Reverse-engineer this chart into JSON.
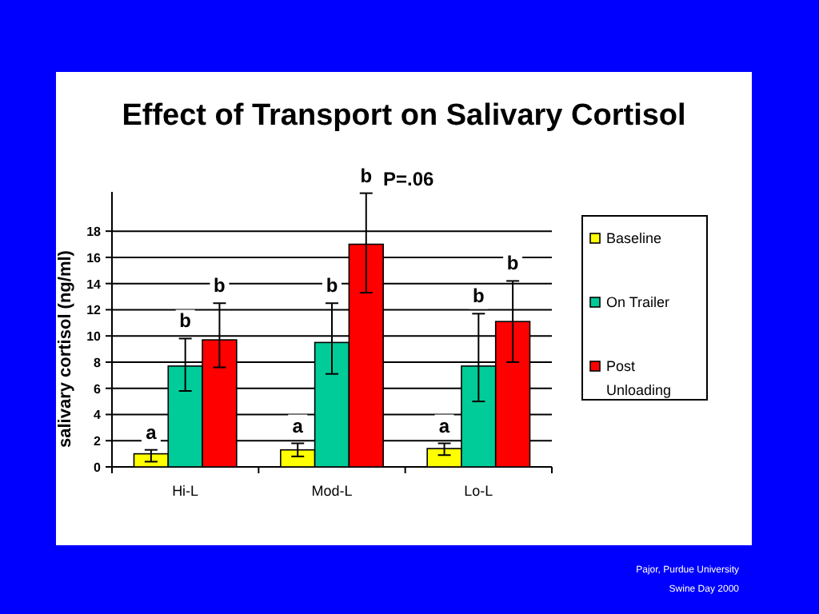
{
  "chart_data": {
    "type": "bar",
    "title": "Effect of Transport on Salivary Cortisol",
    "ylabel": "salivary cortisol (ng/ml)",
    "categories": [
      "Hi-L",
      "Mod-L",
      "Lo-L"
    ],
    "series": [
      {
        "name": "Baseline",
        "color": "#ffff00",
        "values": [
          1.0,
          1.3,
          1.4
        ],
        "errors": [
          [
            0.4,
            1.3
          ],
          [
            0.8,
            1.8
          ],
          [
            0.9,
            1.8
          ]
        ],
        "value_labels": [
          "a",
          "a",
          "a"
        ]
      },
      {
        "name": "On Trailer",
        "color": "#00cc99",
        "values": [
          7.7,
          9.5,
          7.7
        ],
        "errors": [
          [
            5.8,
            9.8
          ],
          [
            7.1,
            12.5
          ],
          [
            5.0,
            11.7
          ]
        ],
        "value_labels": [
          "b",
          "b",
          "b"
        ]
      },
      {
        "name": "Post Unloading",
        "color": "#ff0000",
        "values": [
          9.7,
          17.0,
          11.1
        ],
        "errors": [
          [
            7.6,
            12.5
          ],
          [
            13.3,
            20.9
          ],
          [
            8.0,
            14.2
          ]
        ],
        "value_labels": [
          "b",
          "b",
          "b"
        ]
      }
    ],
    "ylim": [
      0,
      21
    ],
    "yticks": [
      0,
      2,
      4,
      6,
      8,
      10,
      12,
      14,
      16,
      18
    ],
    "grid": "y",
    "legend": "right",
    "annotations": [
      "P=.06",
      "Pajor, Purdue University",
      "Swine Day 2000"
    ]
  }
}
